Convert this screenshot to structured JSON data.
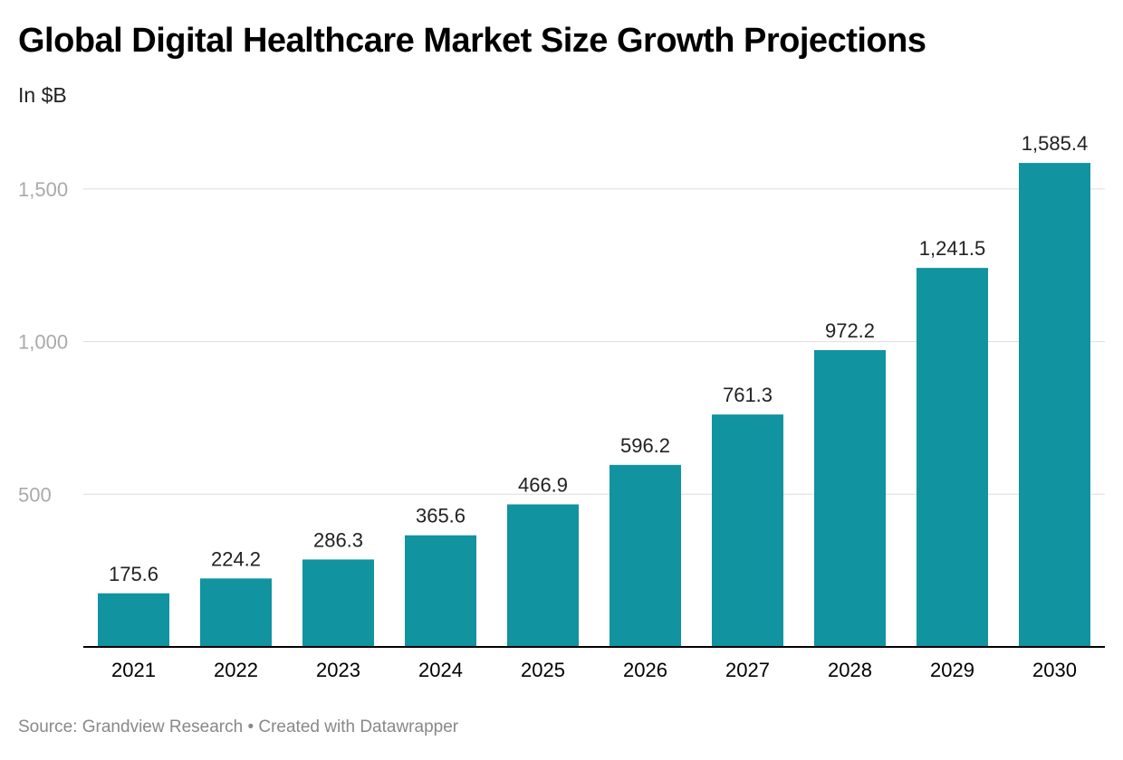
{
  "header": {
    "title": "Global Digital Healthcare Market Size Growth Projections",
    "subtitle": "In $B"
  },
  "footer": {
    "source": "Source: Grandview Research • Created with Datawrapper"
  },
  "colors": {
    "bar": "#1193a0",
    "grid": "#dddddd",
    "axis": "#000000",
    "tick_label": "#aaaaaa",
    "value_label": "#222222"
  },
  "chart_data": {
    "type": "bar",
    "title": "Global Digital Healthcare Market Size Growth Projections",
    "subtitle": "In $B",
    "categories": [
      "2021",
      "2022",
      "2023",
      "2024",
      "2025",
      "2026",
      "2027",
      "2028",
      "2029",
      "2030"
    ],
    "values": [
      175.6,
      224.2,
      286.3,
      365.6,
      466.9,
      596.2,
      761.3,
      972.2,
      1241.5,
      1585.4
    ],
    "value_labels": [
      "175.6",
      "224.2",
      "286.3",
      "365.6",
      "466.9",
      "596.2",
      "761.3",
      "972.2",
      "1,241.5",
      "1,585.4"
    ],
    "ylim": [
      0,
      1600
    ],
    "yticks": [
      500,
      1000,
      1500
    ],
    "ytick_labels": [
      "500",
      "1,000",
      "1,500"
    ],
    "grid": true,
    "legend": "none"
  }
}
